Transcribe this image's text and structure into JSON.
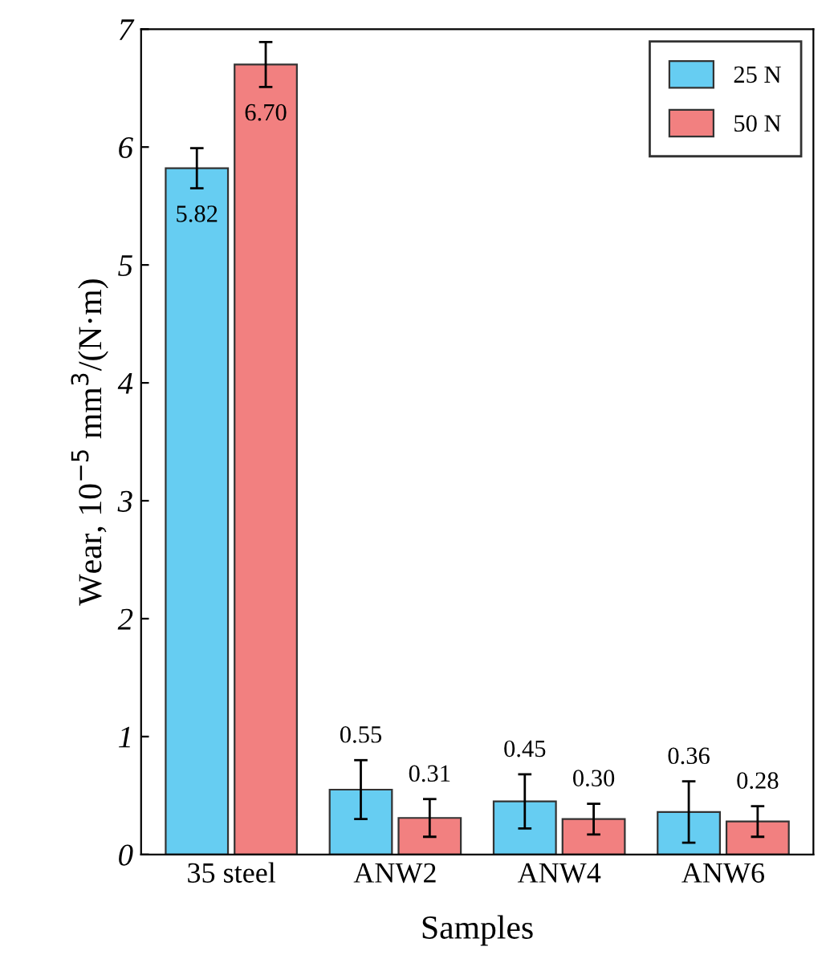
{
  "chart_data": {
    "type": "bar",
    "xlabel": "Samples",
    "ylabel": "Wear, 10$^{−5}$ mm$^{3}$/(N·m)",
    "categories": [
      "35 steel",
      "ANW2",
      "ANW4",
      "ANW6"
    ],
    "series": [
      {
        "name": "25 N",
        "color": "#66cdf2",
        "values": [
          5.82,
          0.55,
          0.45,
          0.36
        ],
        "errors": [
          0.17,
          0.25,
          0.23,
          0.26
        ],
        "value_labels": [
          "5.82",
          "0.55",
          "0.45",
          "0.36"
        ]
      },
      {
        "name": "50 N",
        "color": "#f28080",
        "values": [
          6.7,
          0.31,
          0.3,
          0.28
        ],
        "errors": [
          0.19,
          0.16,
          0.13,
          0.13
        ],
        "value_labels": [
          "6.70",
          "0.31",
          "0.30",
          "0.28"
        ]
      }
    ],
    "ylim": [
      0,
      7
    ],
    "yticks": [
      0,
      1,
      2,
      3,
      4,
      5,
      6,
      7
    ],
    "legend": "top right",
    "grid": false
  }
}
